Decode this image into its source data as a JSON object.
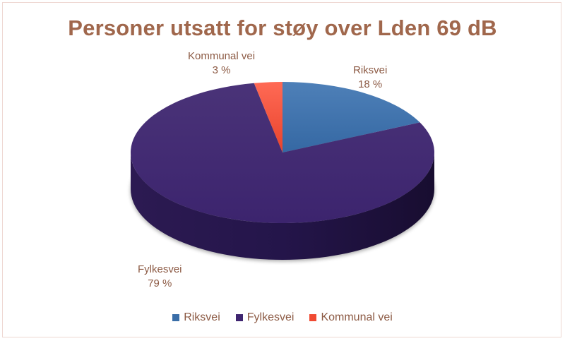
{
  "chart_data": {
    "type": "pie",
    "style": "3d",
    "title": "Personer utsatt for støy over Lden 69 dB",
    "categories": [
      "Riksvei",
      "Fylkesvei",
      "Kommunal vei"
    ],
    "values": [
      18,
      79,
      3
    ],
    "unit": "%",
    "colors": [
      "#3a6ea8",
      "#3f2570",
      "#f04a32"
    ],
    "data_labels": [
      {
        "name": "Riksvei",
        "value": "18 %"
      },
      {
        "name": "Fylkesvei",
        "value": "79 %"
      },
      {
        "name": "Kommunal vei",
        "value": "3 %"
      }
    ],
    "legend_position": "bottom"
  },
  "colors": {
    "title": "#a0674c",
    "label": "#8c5a44",
    "border": "#eed7d2"
  }
}
